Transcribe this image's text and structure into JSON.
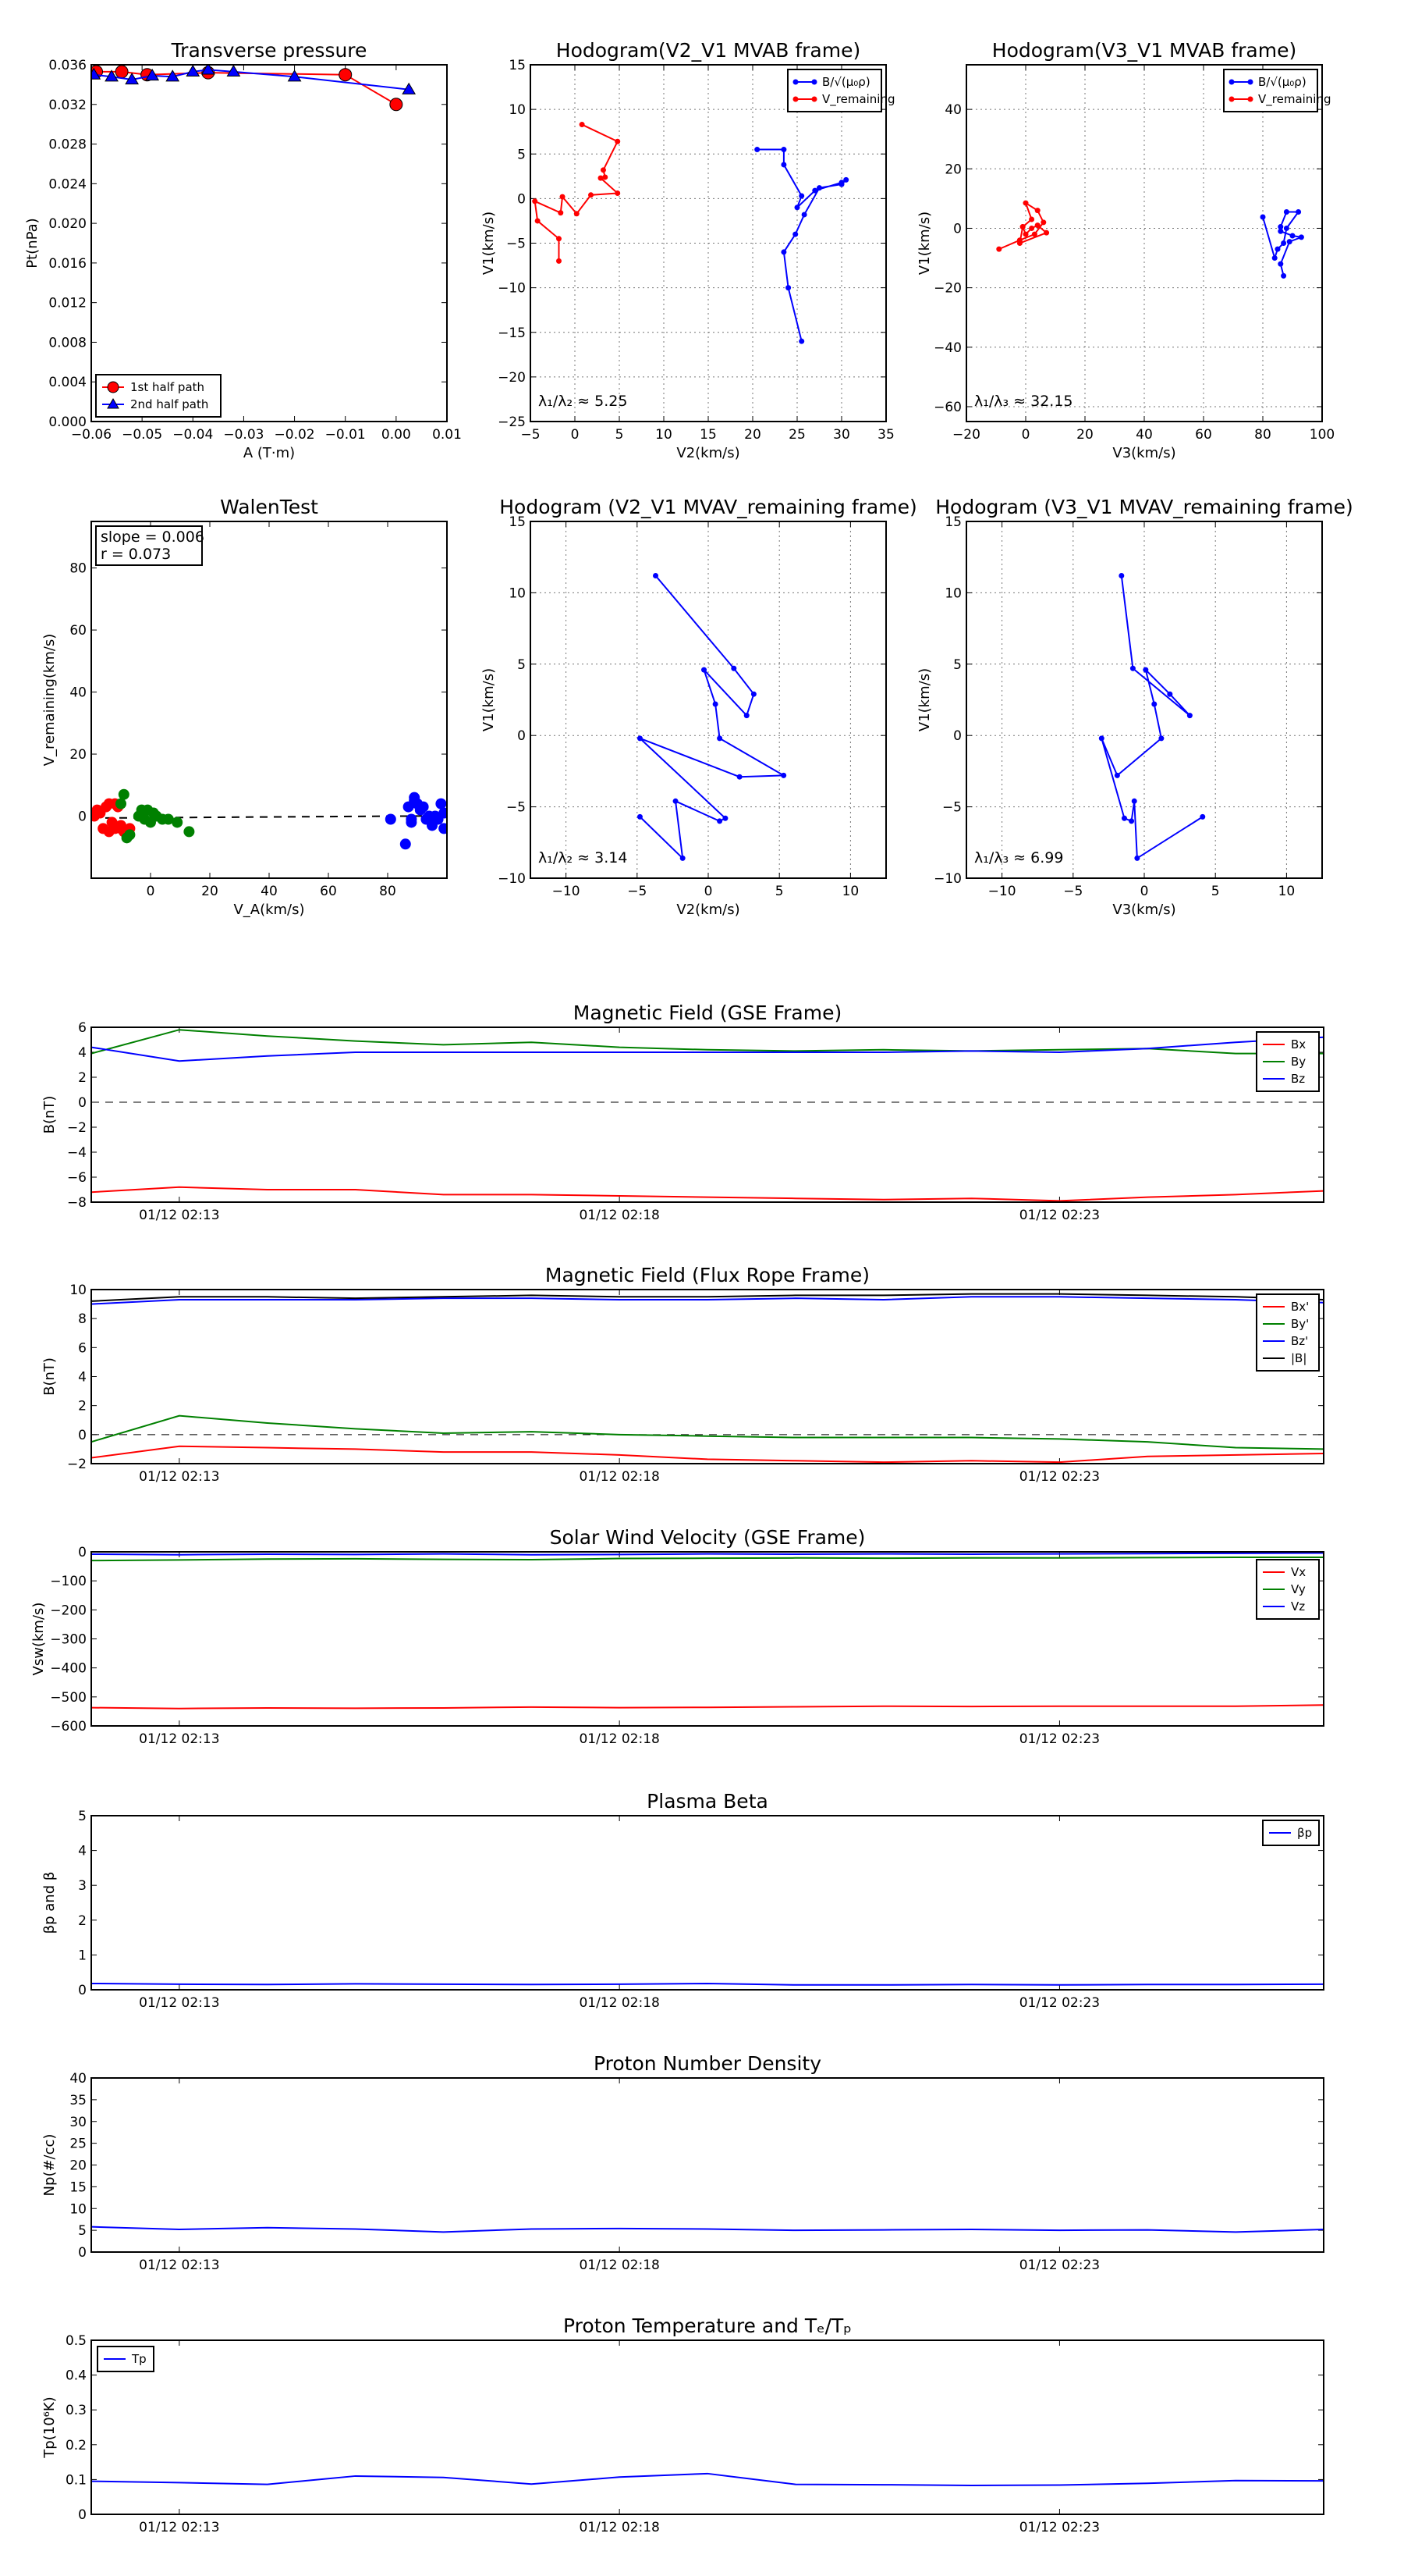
{
  "colors": {
    "red": "#ff0000",
    "blue": "#0000ff",
    "green": "#008000",
    "black": "#000000",
    "grid": "#777777"
  },
  "chart_data": [
    {
      "id": "pt",
      "type": "scatter",
      "title": "Transverse pressure",
      "xlabel": "A (T·m)",
      "ylabel": "Pt(nPa)",
      "xlim": [
        -0.06,
        0.01
      ],
      "ylim": [
        0,
        0.036
      ],
      "xticks": [
        -0.06,
        -0.05,
        -0.04,
        -0.03,
        -0.02,
        -0.01,
        0.0,
        0.01
      ],
      "xticklabels": [
        "−0.06",
        "−0.05",
        "−0.04",
        "−0.03",
        "−0.02",
        "−0.01",
        "0.00",
        "0.01"
      ],
      "yticks": [
        0,
        0.004,
        0.008,
        0.012,
        0.016,
        0.02,
        0.024,
        0.028,
        0.032,
        0.036
      ],
      "yticklabels": [
        "0.000",
        "0.004",
        "0.008",
        "0.012",
        "0.016",
        "0.020",
        "0.024",
        "0.028",
        "0.032",
        "0.036"
      ],
      "grid": false,
      "legend": "lower-left",
      "series": [
        {
          "name": "1st half path",
          "color": "red",
          "marker": "circle",
          "x": [
            -0.059,
            -0.054,
            -0.049,
            -0.037,
            -0.01,
            0.0
          ],
          "y": [
            0.0353,
            0.0353,
            0.035,
            0.0352,
            0.035,
            0.032
          ]
        },
        {
          "name": "2nd half path",
          "color": "blue",
          "marker": "triangle",
          "x": [
            -0.0595,
            -0.056,
            -0.052,
            -0.048,
            -0.044,
            -0.04,
            -0.037,
            -0.032,
            -0.02,
            0.0025
          ],
          "y": [
            0.035,
            0.0348,
            0.0345,
            0.0349,
            0.0348,
            0.0353,
            0.0355,
            0.0353,
            0.0348,
            0.0335
          ]
        }
      ]
    },
    {
      "id": "hodo_v2_mvab",
      "type": "line",
      "title": "Hodogram(V2_V1 MVAB frame)",
      "xlabel": "V2(km/s)",
      "ylabel": "V1(km/s)",
      "xlim": [
        -5,
        35
      ],
      "ylim": [
        -25,
        15
      ],
      "xticks": [
        -5,
        0,
        5,
        10,
        15,
        20,
        25,
        30,
        35
      ],
      "yticks": [
        -25,
        -20,
        -15,
        -10,
        -5,
        0,
        5,
        10,
        15
      ],
      "grid": true,
      "legend": "top-right",
      "annotation": "λ₁/λ₂ ≈ 5.25",
      "series": [
        {
          "name": "B/√(μ₀ρ)",
          "color": "blue",
          "x": [
            20.5,
            23.5,
            23.5,
            25.5,
            25,
            27,
            30,
            30.5,
            30,
            27.5,
            25.8,
            24.8,
            23.5,
            24,
            25.5
          ],
          "y": [
            5.5,
            5.5,
            3.8,
            0.3,
            -1,
            0.9,
            1.8,
            2.1,
            1.6,
            1.2,
            -1.8,
            -4,
            -6,
            -10,
            -16
          ]
        },
        {
          "name": "V_remaining",
          "color": "red",
          "x": [
            0.8,
            4.8,
            3.2,
            3.4,
            2.9,
            4.8,
            1.8,
            0.2,
            -1.4,
            -1.6,
            -4.5,
            -4.2,
            -1.8,
            -1.8
          ],
          "y": [
            8.3,
            6.4,
            3.2,
            2.4,
            2.3,
            0.6,
            0.4,
            -1.7,
            0.2,
            -1.6,
            -0.3,
            -2.5,
            -4.5,
            -7.0
          ]
        }
      ]
    },
    {
      "id": "hodo_v3_mvab",
      "type": "line",
      "title": "Hodogram(V3_V1 MVAB frame)",
      "xlabel": "V3(km/s)",
      "ylabel": "V1(km/s)",
      "xlim": [
        -20,
        100
      ],
      "ylim": [
        -65,
        55
      ],
      "xticks": [
        -20,
        0,
        20,
        40,
        60,
        80,
        100
      ],
      "yticks": [
        -60,
        -40,
        -20,
        0,
        20,
        40
      ],
      "grid": true,
      "legend": "top-right",
      "annotation": "λ₁/λ₃ ≈ 32.15",
      "series": [
        {
          "name": "B/√(μ₀ρ)",
          "color": "blue",
          "x": [
            80,
            84,
            85,
            87,
            88,
            92,
            88,
            86,
            86,
            90,
            93,
            89,
            86,
            87
          ],
          "y": [
            3.8,
            -10,
            -7,
            -5,
            0,
            5.5,
            5.5,
            0.5,
            -1,
            -2.5,
            -3,
            -4.5,
            -12,
            -16
          ]
        },
        {
          "name": "V_remaining",
          "color": "red",
          "x": [
            -9,
            -2,
            3,
            6,
            4,
            0,
            2,
            -1,
            0,
            2,
            4,
            7,
            -2,
            -1
          ],
          "y": [
            -7,
            -4,
            -2,
            2,
            6,
            8.5,
            3,
            0.5,
            -2,
            0,
            1,
            -1.5,
            -5,
            0.5
          ]
        }
      ]
    },
    {
      "id": "walen",
      "type": "scatter",
      "title": "WalenTest",
      "xlabel": "V_A(km/s)",
      "ylabel": "V_remaining(km/s)",
      "xlim": [
        -20,
        100
      ],
      "ylim": [
        -20,
        95
      ],
      "xticks": [
        0,
        20,
        40,
        60,
        80
      ],
      "yticks": [
        0,
        20,
        40,
        60,
        80
      ],
      "grid": false,
      "annotation": [
        "slope = 0.006",
        "r = 0.073"
      ],
      "fit": {
        "slope": 0.006,
        "intercept": -0.5
      },
      "series": [
        {
          "color": "red",
          "x": [
            -19,
            -17,
            -15,
            -14,
            -13,
            -12,
            -11,
            -10,
            -9,
            -8,
            -16,
            -18,
            -14,
            -12,
            -10,
            -7
          ],
          "y": [
            0,
            1,
            3,
            4,
            -2,
            4,
            3,
            -4,
            -5,
            -6,
            -4,
            2,
            -5,
            -4,
            -3,
            -4
          ]
        },
        {
          "color": "green",
          "x": [
            -10,
            -9,
            -8,
            -4,
            -2,
            -1,
            0,
            1,
            2,
            4,
            6,
            9,
            13,
            -3,
            -7
          ],
          "y": [
            4,
            7,
            -7,
            0,
            -1,
            2,
            -2,
            1,
            0,
            -1,
            -1,
            -2,
            -5,
            2,
            -6
          ]
        },
        {
          "color": "blue",
          "x": [
            86,
            87,
            88,
            89,
            90,
            91,
            92,
            93,
            94,
            95,
            96,
            97,
            98,
            99,
            81,
            88,
            89,
            95,
            99
          ],
          "y": [
            -9,
            3,
            -2,
            6,
            4,
            2,
            3,
            -1,
            0,
            -2,
            0,
            -1,
            4,
            1,
            -1,
            -1,
            5,
            -3,
            -4
          ]
        }
      ]
    },
    {
      "id": "hodo_v2_rem",
      "type": "line",
      "title": "Hodogram (V2_V1 MVAV_remaining frame)",
      "xlabel": "V2(km/s)",
      "ylabel": "V1(km/s)",
      "xlim": [
        -12.5,
        12.5
      ],
      "ylim": [
        -10,
        15
      ],
      "xticks": [
        -10,
        -5,
        0,
        5,
        10
      ],
      "yticks": [
        -10,
        -5,
        0,
        5,
        10,
        15
      ],
      "grid": true,
      "annotation": "λ₁/λ₂ ≈ 3.14",
      "series": [
        {
          "color": "blue",
          "x": [
            -3.7,
            1.8,
            3.2,
            2.7,
            -0.3,
            0.5,
            0.8,
            5.3,
            2.2,
            -4.8,
            1.2,
            0.8,
            -2.3,
            -1.8,
            -4.8
          ],
          "y": [
            11.2,
            4.7,
            2.9,
            1.4,
            4.6,
            2.2,
            -0.2,
            -2.8,
            -2.9,
            -0.2,
            -5.8,
            -6.0,
            -4.6,
            -8.6,
            -5.7
          ]
        }
      ]
    },
    {
      "id": "hodo_v3_rem",
      "type": "line",
      "title": "Hodogram (V3_V1 MVAV_remaining frame)",
      "xlabel": "V3(km/s)",
      "ylabel": "V1(km/s)",
      "xlim": [
        -12.5,
        12.5
      ],
      "ylim": [
        -10,
        15
      ],
      "xticks": [
        -10,
        -5,
        0,
        5,
        10
      ],
      "yticks": [
        -10,
        -5,
        0,
        5,
        10,
        15
      ],
      "grid": true,
      "annotation": "λ₁/λ₃ ≈ 6.99",
      "series": [
        {
          "color": "blue",
          "x": [
            -1.6,
            -0.8,
            3.2,
            1.8,
            0.1,
            0.7,
            1.2,
            -1.9,
            -3.0,
            -1.4,
            -0.9,
            -0.7,
            -0.5,
            4.1
          ],
          "y": [
            11.2,
            4.7,
            1.4,
            2.9,
            4.6,
            2.2,
            -0.2,
            -2.8,
            -0.2,
            -5.8,
            -6.0,
            -4.6,
            -8.6,
            -5.7
          ]
        }
      ]
    },
    {
      "id": "bgse",
      "type": "line",
      "title": "Magnetic Field (GSE Frame)",
      "ylabel": "B(nT)",
      "xlim": [
        0,
        14
      ],
      "ylim": [
        -8,
        6
      ],
      "yticks": [
        -8,
        -6,
        -4,
        -2,
        0,
        2,
        4,
        6
      ],
      "xticks": [
        1,
        6,
        11
      ],
      "xticklabels": [
        "01/12 02:13",
        "01/12 02:18",
        "01/12 02:23"
      ],
      "zero_line": true,
      "legend": "top-right",
      "x": [
        0,
        1,
        2,
        3,
        4,
        5,
        6,
        7,
        8,
        9,
        10,
        11,
        12,
        13,
        14
      ],
      "series": [
        {
          "name": "Bx",
          "color": "red",
          "values": [
            -7.2,
            -6.8,
            -7.0,
            -7.0,
            -7.4,
            -7.4,
            -7.5,
            -7.6,
            -7.7,
            -7.8,
            -7.7,
            -7.9,
            -7.6,
            -7.4,
            -7.1
          ]
        },
        {
          "name": "By",
          "color": "green",
          "values": [
            3.9,
            5.8,
            5.3,
            4.9,
            4.6,
            4.8,
            4.4,
            4.2,
            4.1,
            4.2,
            4.1,
            4.2,
            4.3,
            3.9,
            3.9
          ]
        },
        {
          "name": "Bz",
          "color": "blue",
          "values": [
            4.4,
            3.3,
            3.7,
            4.0,
            4.0,
            4.0,
            4.0,
            4.0,
            4.0,
            4.0,
            4.1,
            4.0,
            4.3,
            4.8,
            5.2
          ]
        }
      ]
    },
    {
      "id": "bfr",
      "type": "line",
      "title": "Magnetic Field (Flux Rope Frame)",
      "ylabel": "B(nT)",
      "xlim": [
        0,
        14
      ],
      "ylim": [
        -2,
        10
      ],
      "yticks": [
        -2,
        0,
        2,
        4,
        6,
        8,
        10
      ],
      "xticks": [
        1,
        6,
        11
      ],
      "xticklabels": [
        "01/12 02:13",
        "01/12 02:18",
        "01/12 02:23"
      ],
      "zero_line": true,
      "legend": "top-right",
      "x": [
        0,
        1,
        2,
        3,
        4,
        5,
        6,
        7,
        8,
        9,
        10,
        11,
        12,
        13,
        14
      ],
      "series": [
        {
          "name": "Bx'",
          "color": "red",
          "values": [
            -1.6,
            -0.8,
            -0.9,
            -1.0,
            -1.2,
            -1.2,
            -1.4,
            -1.7,
            -1.8,
            -1.9,
            -1.8,
            -1.9,
            -1.5,
            -1.4,
            -1.3
          ]
        },
        {
          "name": "By'",
          "color": "green",
          "values": [
            -0.5,
            1.3,
            0.8,
            0.4,
            0.1,
            0.2,
            0.0,
            -0.1,
            -0.2,
            -0.2,
            -0.2,
            -0.3,
            -0.5,
            -0.9,
            -1.0
          ]
        },
        {
          "name": "Bz'",
          "color": "blue",
          "values": [
            9.0,
            9.3,
            9.3,
            9.3,
            9.4,
            9.4,
            9.3,
            9.3,
            9.4,
            9.3,
            9.5,
            9.5,
            9.4,
            9.3,
            9.1
          ]
        },
        {
          "name": "|B|",
          "color": "black",
          "values": [
            9.2,
            9.5,
            9.5,
            9.4,
            9.5,
            9.6,
            9.5,
            9.5,
            9.6,
            9.6,
            9.7,
            9.7,
            9.6,
            9.5,
            9.3
          ]
        }
      ]
    },
    {
      "id": "vsw",
      "type": "line",
      "title": "Solar Wind Velocity (GSE Frame)",
      "ylabel": "Vsw(km/s)",
      "xlim": [
        0,
        14
      ],
      "ylim": [
        -600,
        0
      ],
      "yticks": [
        -600,
        -500,
        -400,
        -300,
        -200,
        -100,
        0
      ],
      "xticks": [
        1,
        6,
        11
      ],
      "xticklabels": [
        "01/12 02:13",
        "01/12 02:18",
        "01/12 02:23"
      ],
      "legend": "right",
      "x": [
        0,
        1,
        2,
        3,
        4,
        5,
        6,
        7,
        8,
        9,
        10,
        11,
        12,
        13,
        14
      ],
      "series": [
        {
          "name": "Vx",
          "color": "red",
          "values": [
            -537,
            -540,
            -538,
            -539,
            -538,
            -535,
            -537,
            -536,
            -534,
            -532,
            -533,
            -532,
            -532,
            -532,
            -528
          ]
        },
        {
          "name": "Vy",
          "color": "green",
          "values": [
            -30,
            -28,
            -25,
            -24,
            -26,
            -27,
            -23,
            -22,
            -21,
            -22,
            -21,
            -21,
            -20,
            -19,
            -19
          ]
        },
        {
          "name": "Vz",
          "color": "blue",
          "values": [
            -8,
            -10,
            -8,
            -9,
            -7,
            -10,
            -9,
            -7,
            -8,
            -7,
            -8,
            -7,
            -6,
            -5,
            -4
          ]
        }
      ]
    },
    {
      "id": "beta",
      "type": "line",
      "title": "Plasma Beta",
      "ylabel": "βp and β",
      "xlim": [
        0,
        14
      ],
      "ylim": [
        0,
        5
      ],
      "yticks": [
        0,
        1,
        2,
        3,
        4,
        5
      ],
      "xticks": [
        1,
        6,
        11
      ],
      "xticklabels": [
        "01/12 02:13",
        "01/12 02:18",
        "01/12 02:23"
      ],
      "legend": "top-right",
      "x": [
        0,
        1,
        2,
        3,
        4,
        5,
        6,
        7,
        8,
        9,
        10,
        11,
        12,
        13,
        14
      ],
      "series": [
        {
          "name": "βp",
          "color": "blue",
          "values": [
            0.18,
            0.16,
            0.15,
            0.17,
            0.16,
            0.15,
            0.16,
            0.18,
            0.14,
            0.14,
            0.15,
            0.14,
            0.15,
            0.15,
            0.16
          ]
        }
      ]
    },
    {
      "id": "np",
      "type": "line",
      "title": "Proton Number Density",
      "ylabel": "Np(#/cc)",
      "xlim": [
        0,
        14
      ],
      "ylim": [
        0,
        40
      ],
      "yticks": [
        0,
        5,
        10,
        15,
        20,
        25,
        30,
        35,
        40
      ],
      "xticks": [
        1,
        6,
        11
      ],
      "xticklabels": [
        "01/12 02:13",
        "01/12 02:18",
        "01/12 02:23"
      ],
      "x": [
        0,
        1,
        2,
        3,
        4,
        5,
        6,
        7,
        8,
        9,
        10,
        11,
        12,
        13,
        14
      ],
      "series": [
        {
          "name": "Np",
          "color": "blue",
          "values": [
            5.8,
            5.2,
            5.6,
            5.3,
            4.6,
            5.3,
            5.4,
            5.3,
            5.0,
            5.1,
            5.2,
            5.0,
            5.1,
            4.6,
            5.2
          ]
        }
      ]
    },
    {
      "id": "tp",
      "type": "line",
      "title": "Proton Temperature and Tₑ/Tₚ",
      "ylabel": "Tp(10⁶K)",
      "xlim": [
        0,
        14
      ],
      "ylim": [
        0,
        0.5
      ],
      "yticks": [
        0,
        0.1,
        0.2,
        0.3,
        0.4,
        0.5
      ],
      "xticks": [
        1,
        6,
        11
      ],
      "xticklabels": [
        "01/12 02:13",
        "01/12 02:18",
        "01/12 02:23"
      ],
      "legend": "top-left",
      "x": [
        0,
        1,
        2,
        3,
        4,
        5,
        6,
        7,
        8,
        9,
        10,
        11,
        12,
        13,
        14
      ],
      "series": [
        {
          "name": "Tp",
          "color": "blue",
          "values": [
            0.095,
            0.091,
            0.086,
            0.11,
            0.106,
            0.087,
            0.107,
            0.117,
            0.086,
            0.085,
            0.083,
            0.084,
            0.089,
            0.097,
            0.096
          ]
        }
      ]
    }
  ]
}
